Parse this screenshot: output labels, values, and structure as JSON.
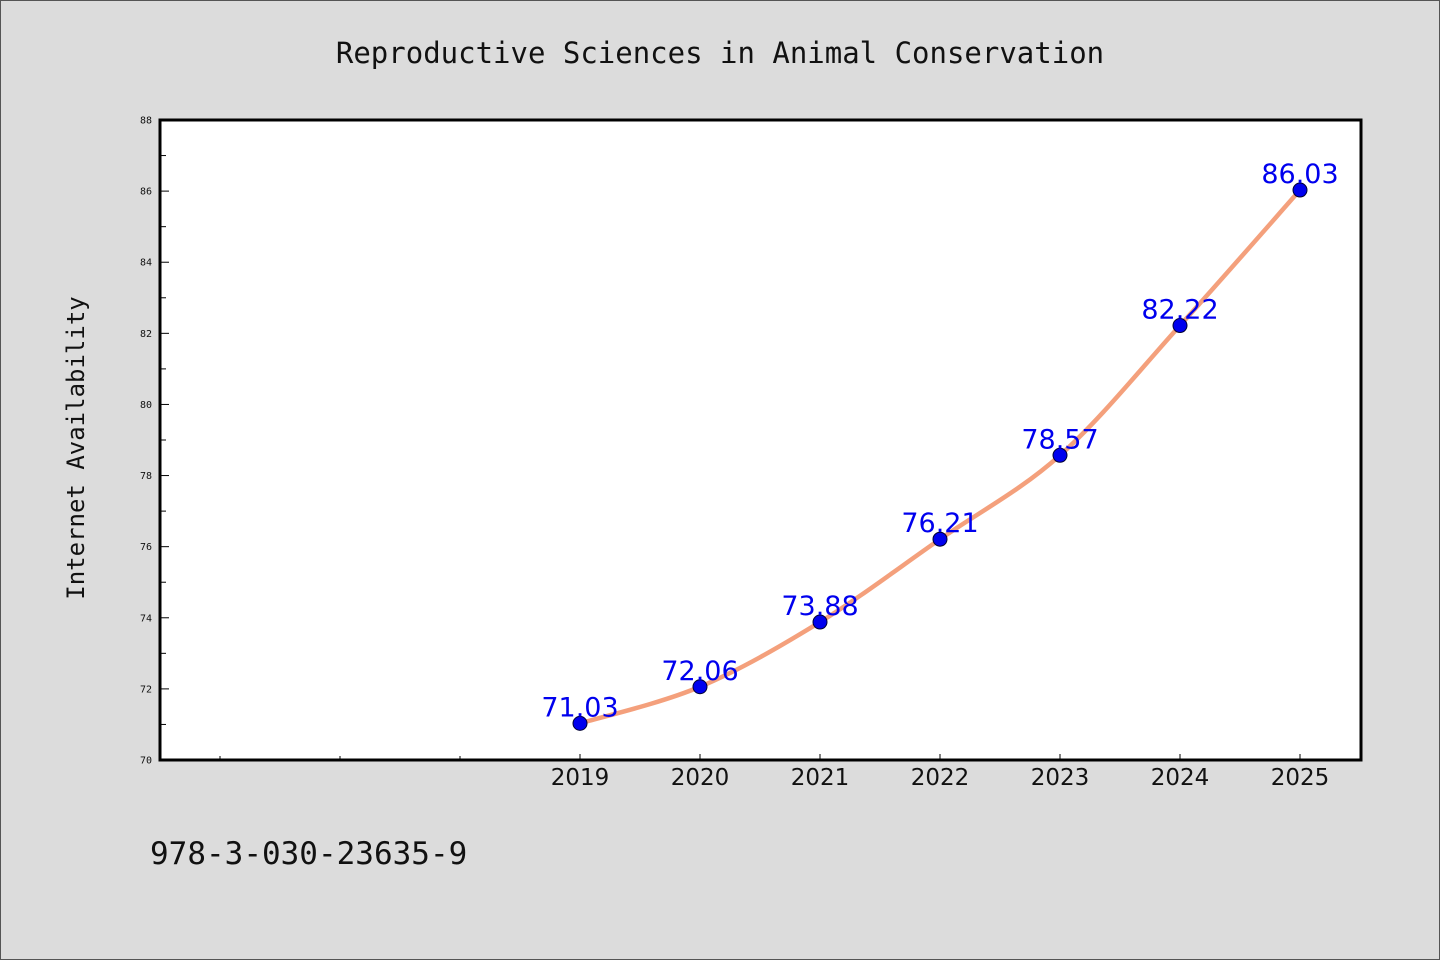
{
  "footer_text": "978-3-030-23635-9",
  "chart_data": {
    "type": "line",
    "title": "Reproductive Sciences in Animal Conservation",
    "xlabel": "",
    "ylabel": "Internet Availability",
    "categories": [
      "2019",
      "2020",
      "2021",
      "2022",
      "2023",
      "2024",
      "2025"
    ],
    "values": [
      71.03,
      72.06,
      73.88,
      76.21,
      78.57,
      82.22,
      86.03
    ],
    "data_labels": [
      "71.03",
      "72.06",
      "73.88",
      "76.21",
      "78.57",
      "82.22",
      "86.03"
    ],
    "ylim": [
      70,
      88
    ],
    "yticks": [
      70,
      72,
      74,
      76,
      78,
      80,
      82,
      84,
      86,
      88
    ],
    "grid": false,
    "line_color": "#f4a07c",
    "marker_color": "#0000ee",
    "label_color": "#0000ee",
    "background_color": "#dcdcdc",
    "plot_background": "#ffffff"
  }
}
